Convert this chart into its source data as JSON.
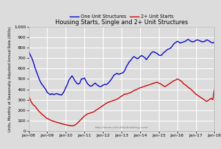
{
  "title": "Housing Starts, Single and 2+ Unit Structures",
  "ylabel": "Units, Monthly at Seasonally Adjusted Annual Rate (000s)",
  "watermark": "http://www.calculatedriskblog.com/",
  "legend_labels": [
    "One Unit Structures",
    "2+ Unit Starts"
  ],
  "legend_colors": [
    "#0000cc",
    "#cc0000"
  ],
  "bg_color": "#dcdcdc",
  "grid_color": "#ffffff",
  "ylim": [
    0,
    1000
  ],
  "yticks": [
    0,
    100,
    200,
    300,
    400,
    500,
    600,
    700,
    800,
    900,
    1000
  ],
  "ytick_labels": [
    "0",
    "100",
    "200",
    "300",
    "400",
    "500",
    "600",
    "700",
    "800",
    "900",
    "1,000"
  ],
  "xtick_labels": [
    "Jan-08",
    "Jan-09",
    "Jan-10",
    "Jan-11",
    "Jan-12",
    "Jan-13",
    "Jan-14",
    "Jan-15",
    "Jan-16",
    "Jan-17",
    "Jan-18"
  ],
  "single_family": [
    760,
    730,
    700,
    660,
    610,
    570,
    530,
    490,
    460,
    440,
    420,
    400,
    370,
    360,
    350,
    360,
    350,
    355,
    360,
    355,
    350,
    345,
    360,
    385,
    420,
    450,
    490,
    510,
    530,
    505,
    480,
    460,
    450,
    460,
    500,
    500,
    510,
    480,
    455,
    440,
    430,
    435,
    450,
    460,
    445,
    435,
    425,
    430,
    440,
    450,
    445,
    455,
    470,
    490,
    510,
    535,
    545,
    555,
    545,
    550,
    555,
    560,
    580,
    615,
    640,
    665,
    680,
    700,
    715,
    705,
    695,
    700,
    715,
    725,
    715,
    705,
    685,
    705,
    725,
    745,
    760,
    760,
    750,
    745,
    730,
    725,
    730,
    750,
    760,
    775,
    785,
    790,
    800,
    820,
    840,
    850,
    860,
    855,
    845,
    850,
    855,
    860,
    870,
    880,
    870,
    860,
    855,
    860,
    870,
    875,
    870,
    865,
    855,
    858,
    862,
    875,
    870,
    860,
    850,
    845,
    855
  ],
  "multi_family": [
    330,
    300,
    270,
    250,
    240,
    220,
    200,
    185,
    170,
    155,
    145,
    130,
    120,
    115,
    105,
    100,
    95,
    90,
    85,
    80,
    78,
    72,
    68,
    65,
    60,
    58,
    55,
    53,
    50,
    52,
    60,
    70,
    85,
    100,
    115,
    130,
    145,
    155,
    165,
    170,
    175,
    180,
    185,
    195,
    205,
    215,
    225,
    235,
    245,
    255,
    265,
    275,
    280,
    285,
    290,
    295,
    300,
    305,
    315,
    325,
    335,
    345,
    355,
    355,
    360,
    365,
    370,
    380,
    390,
    395,
    400,
    410,
    415,
    420,
    425,
    430,
    435,
    440,
    445,
    450,
    455,
    460,
    465,
    470,
    460,
    455,
    445,
    435,
    425,
    435,
    445,
    455,
    465,
    475,
    485,
    490,
    500,
    495,
    485,
    475,
    455,
    445,
    435,
    420,
    410,
    400,
    385,
    370,
    355,
    345,
    335,
    325,
    315,
    305,
    295,
    285,
    295,
    305,
    315,
    300,
    400
  ]
}
